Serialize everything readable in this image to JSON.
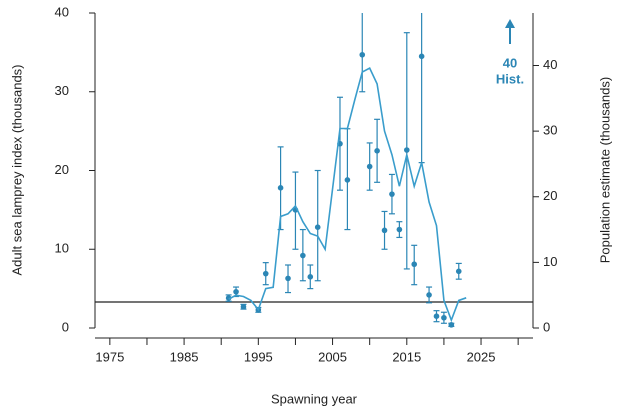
{
  "chart_data": {
    "type": "errorbar",
    "x_label": "Spawning year",
    "y_label": "Adult sea lamprey index  (thousands)",
    "y2_label": "Population estimate  (thousands)",
    "xlim": [
      1973,
      2032
    ],
    "xticks": [
      1975,
      1985,
      1995,
      2005,
      2015,
      2025
    ],
    "x_minor_ticks": [
      1980,
      1990,
      2000,
      2010,
      2020,
      2030
    ],
    "ylim": [
      0,
      40
    ],
    "yticks": [
      0,
      10,
      20,
      30,
      40
    ],
    "y2lim": [
      0,
      48
    ],
    "y2ticks": [
      0,
      10,
      20,
      30,
      40
    ],
    "hline": 3.3,
    "annotations": [
      "40",
      "Hist."
    ],
    "series": [
      {
        "type": "errorbar",
        "color": "#2b86b5",
        "x": [
          1991,
          1992,
          1993,
          1995,
          1996,
          1998,
          1999,
          2000,
          2001,
          2002,
          2003,
          2006,
          2007,
          2009,
          2010,
          2011,
          2012,
          2013,
          2014,
          2015,
          2016,
          2017,
          2018,
          2019,
          2020,
          2021,
          2022
        ],
        "values": [
          3.8,
          4.6,
          2.7,
          2.3,
          6.9,
          17.8,
          6.3,
          15,
          9.2,
          6.5,
          12.8,
          23.4,
          18.8,
          34.7,
          20.5,
          22.5,
          12.4,
          17,
          12.5,
          22.6,
          8.1,
          34.5,
          4.2,
          1.5,
          1.3,
          0.4,
          7.2
        ],
        "lower": [
          3.4,
          4.0,
          2.4,
          2.0,
          5.5,
          12.5,
          4.5,
          10,
          6,
          5,
          6,
          17.5,
          12.5,
          30,
          17.5,
          18.5,
          10,
          14.5,
          11.5,
          7.5,
          5.5,
          21,
          3.2,
          0.8,
          0.6,
          0.2,
          6.2
        ],
        "upper": [
          4.2,
          5.2,
          3.0,
          2.6,
          8.3,
          23,
          8,
          19.8,
          12.5,
          8,
          20,
          29.3,
          25.3,
          40,
          23.5,
          26.5,
          14.8,
          19.5,
          13.5,
          37.5,
          10.5,
          40,
          5.2,
          2.2,
          2.0,
          0.6,
          8.2
        ]
      },
      {
        "type": "line",
        "axis": "y2",
        "color": "#3a9dcc",
        "x": [
          1991,
          1992,
          1993,
          1994,
          1995,
          1996,
          1997,
          1998,
          1999,
          2000,
          2001,
          2002,
          2003,
          2004,
          2006,
          2007,
          2008,
          2009,
          2010,
          2011,
          2012,
          2013,
          2014,
          2015,
          2016,
          2017,
          2018,
          2019,
          2020,
          2021,
          2022,
          2023
        ],
        "values": [
          4.4,
          5.0,
          4.8,
          4.2,
          2.8,
          6.0,
          6.2,
          17.0,
          17.4,
          18.6,
          16.2,
          14.4,
          14.0,
          12.0,
          30.4,
          30.4,
          34.8,
          39.0,
          39.6,
          37.2,
          30.0,
          26.4,
          21.6,
          26.4,
          21.6,
          25.2,
          19.2,
          15.6,
          4.2,
          1.2,
          4.2,
          4.6
        ]
      }
    ]
  }
}
